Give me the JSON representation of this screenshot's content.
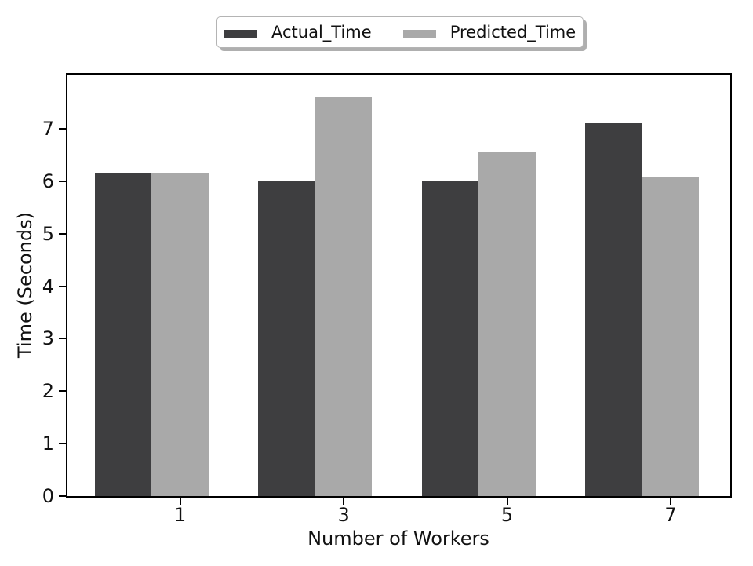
{
  "figure": {
    "background": "#ffffff",
    "axes_edge_color": "#000000"
  },
  "chart_data": {
    "type": "bar",
    "title": "",
    "xlabel": "Number of Workers",
    "ylabel": "Time (Seconds)",
    "categories": [
      "1",
      "3",
      "5",
      "7"
    ],
    "series": [
      {
        "name": "Actual_Time",
        "color": "#3e3e40",
        "values": [
          6.14,
          6.01,
          6.01,
          7.1
        ]
      },
      {
        "name": "Predicted_Time",
        "color": "#a9a9a9",
        "values": [
          6.14,
          7.6,
          6.56,
          6.09
        ]
      }
    ],
    "ylim": [
      0,
      8.03
    ],
    "yticks": [
      0,
      1,
      2,
      3,
      4,
      5,
      6,
      7
    ],
    "grid": false,
    "legend_position": "top center, outside axes, fancybox with shadow"
  }
}
